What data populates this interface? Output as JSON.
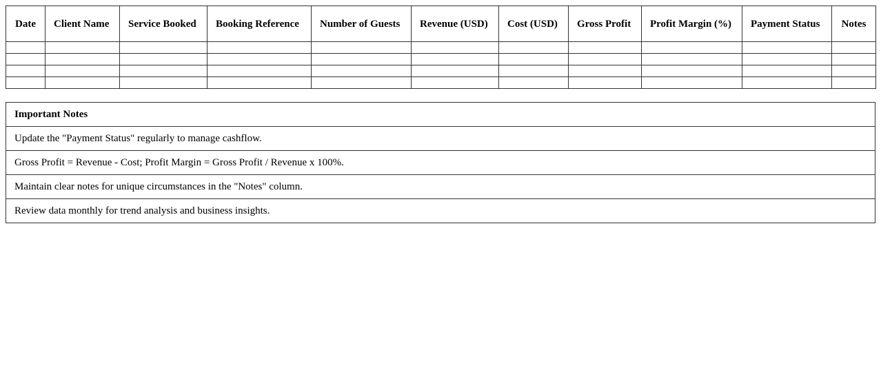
{
  "table": {
    "headers": [
      "Date",
      "Client Name",
      "Service Booked",
      "Booking Reference",
      "Number of Guests",
      "Revenue (USD)",
      "Cost (USD)",
      "Gross Profit",
      "Profit Margin (%)",
      "Payment Status",
      "Notes"
    ],
    "empty_rows": 4
  },
  "notes": {
    "title": "Important Notes",
    "items": [
      "Update the \"Payment Status\" regularly to manage cashflow.",
      "Gross Profit = Revenue - Cost; Profit Margin = Gross Profit / Revenue x 100%.",
      "Maintain clear notes for unique circumstances in the \"Notes\" column.",
      "Review data monthly for trend analysis and business insights."
    ]
  }
}
